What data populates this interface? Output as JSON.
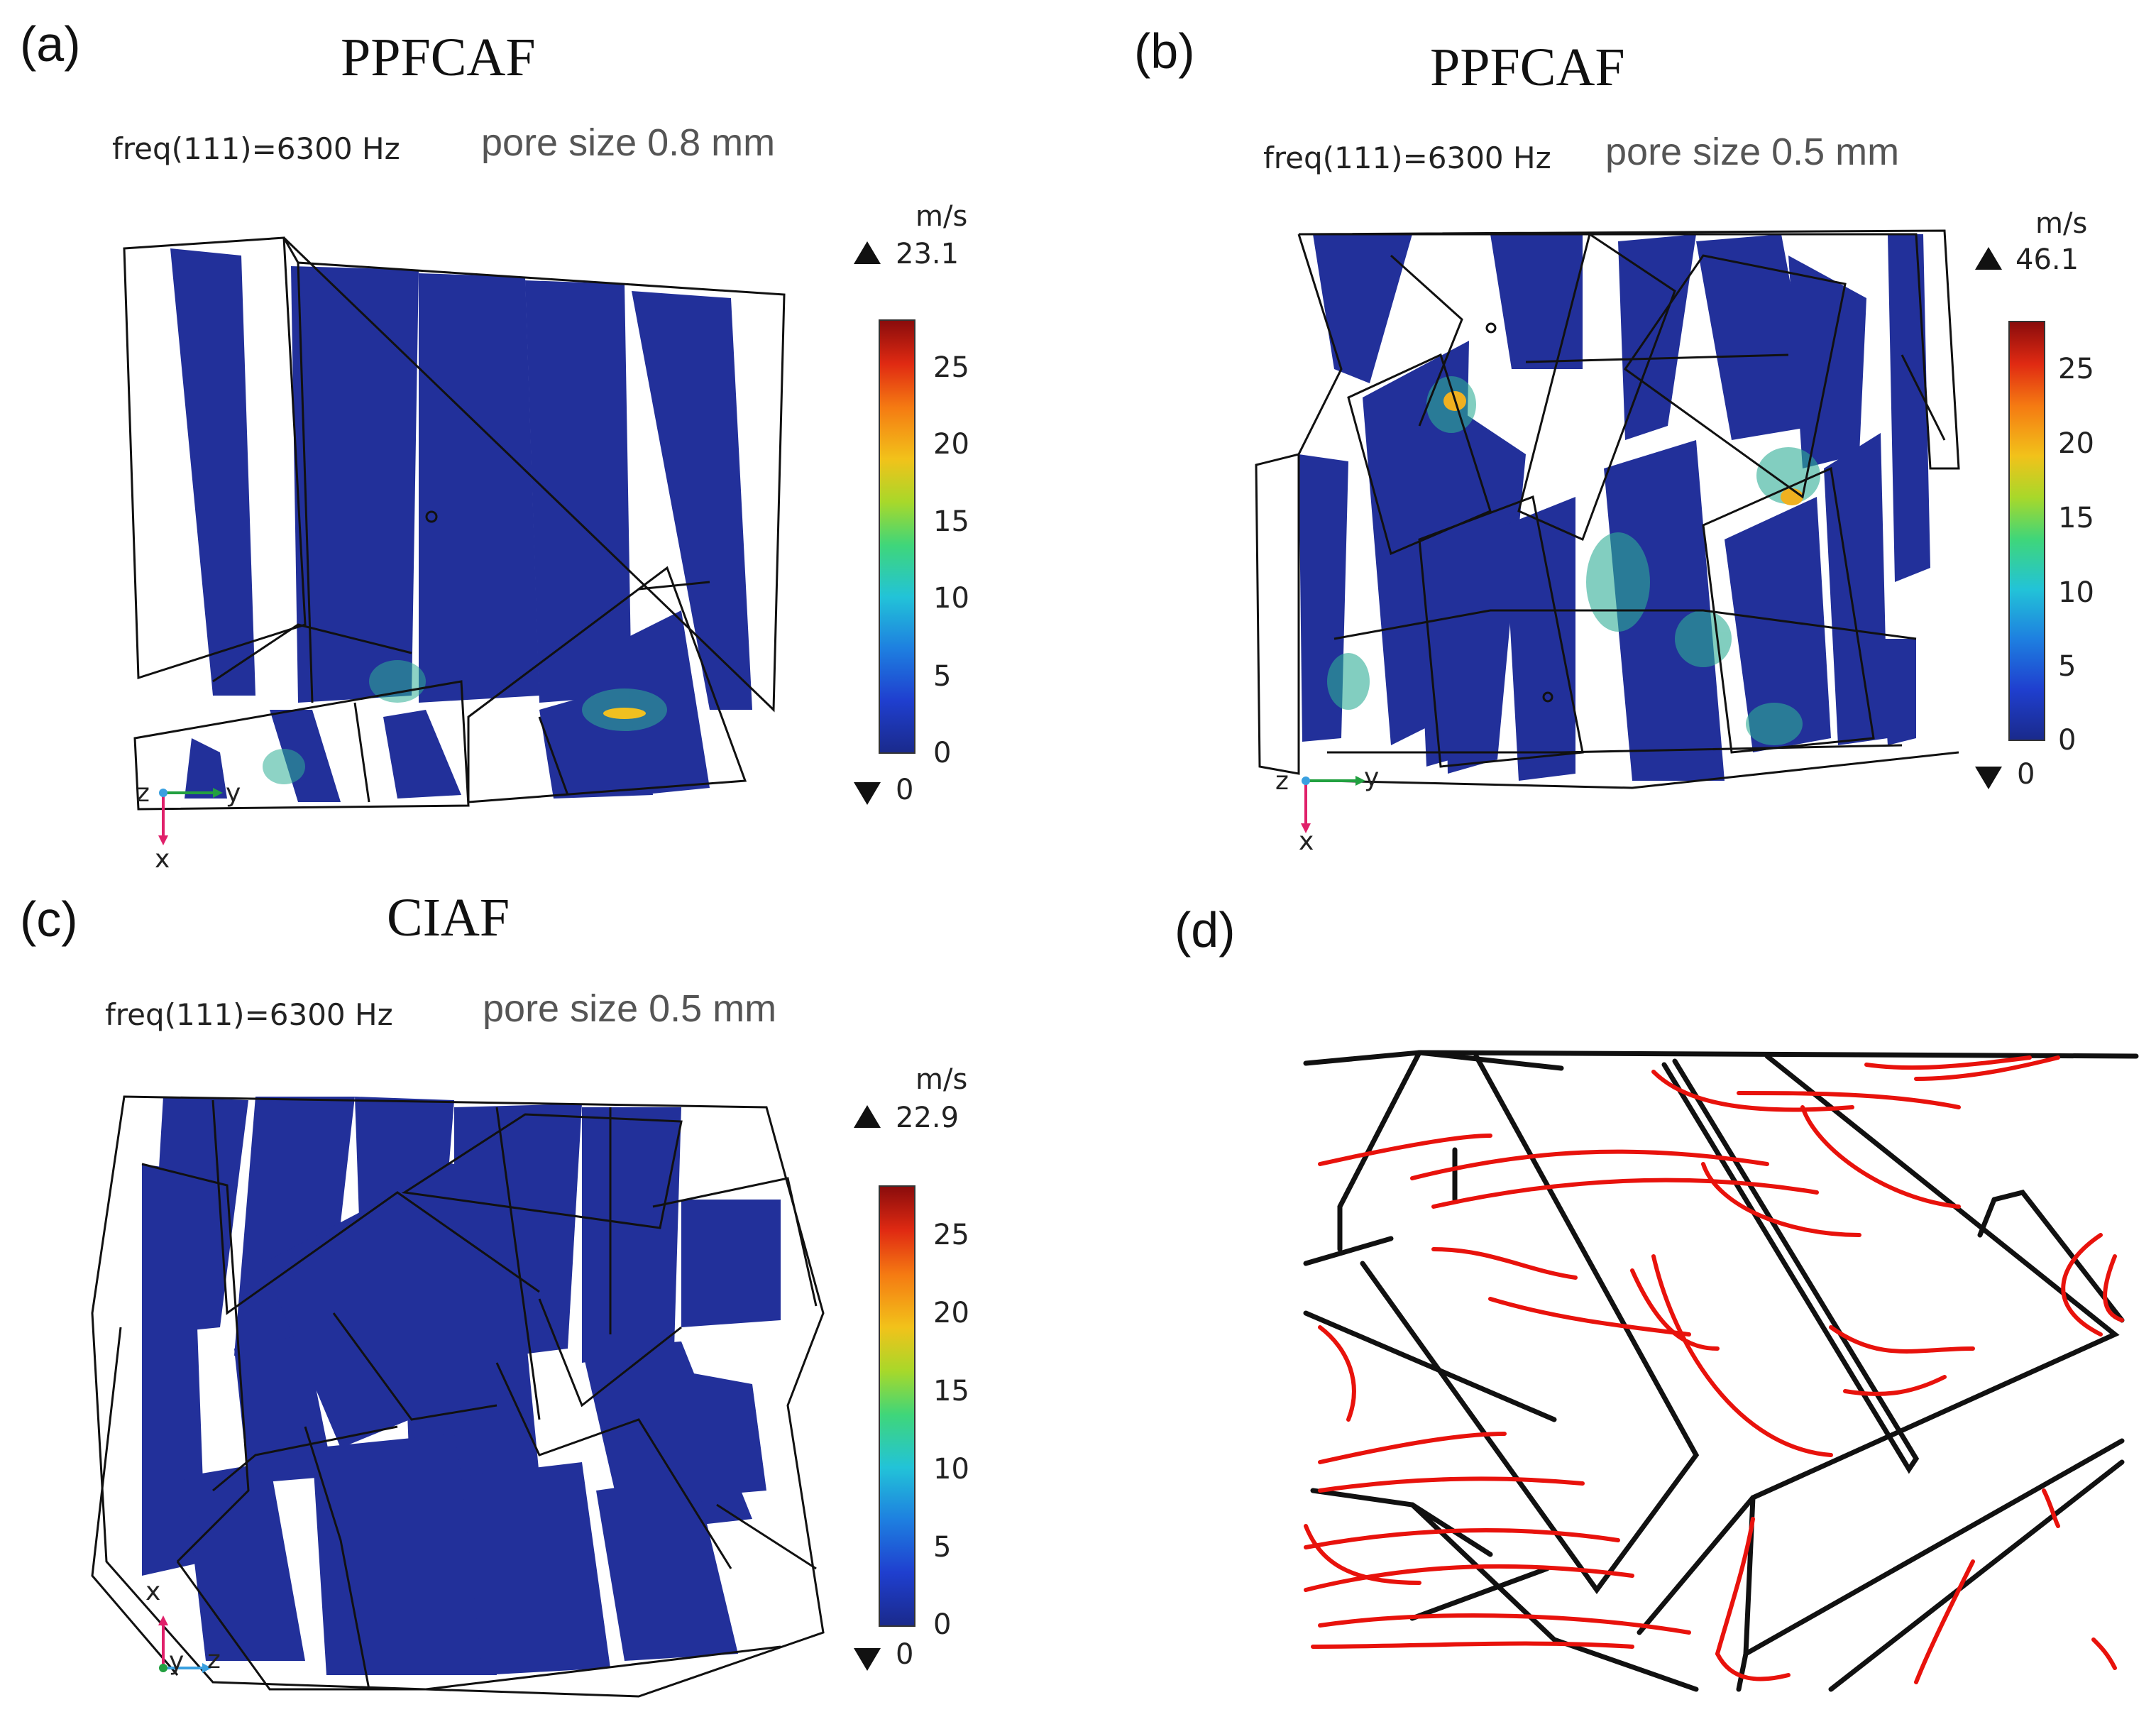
{
  "panels": {
    "a": {
      "label": "(a)",
      "title": "PPFCAF",
      "freq": "freq(111)=6300 Hz",
      "pore": "pore size 0.8 mm",
      "unit": "m/s",
      "max": "23.1",
      "min": "0",
      "axes": [
        "z",
        "y",
        "x"
      ]
    },
    "b": {
      "label": "(b)",
      "title": "PPFCAF",
      "freq": "freq(111)=6300 Hz",
      "pore": "pore size 0.5 mm",
      "unit": "m/s",
      "max": "46.1",
      "min": "0",
      "axes": [
        "z",
        "y",
        "x"
      ]
    },
    "c": {
      "label": "(c)",
      "title": "CIAF",
      "freq": "freq(111)=6300 Hz",
      "pore": "pore size 0.5 mm",
      "unit": "m/s",
      "max": "22.9",
      "min": "0",
      "axes": [
        "x",
        "y",
        "z"
      ]
    },
    "d": {
      "label": "(d)"
    }
  },
  "colorbar_ticks": [
    "25",
    "20",
    "15",
    "10",
    "5",
    "0"
  ],
  "colors": {
    "fiber_fill": "#22309a",
    "frame_line": "#111111",
    "streamline": "#e8120c",
    "hot": "#f0c020"
  }
}
